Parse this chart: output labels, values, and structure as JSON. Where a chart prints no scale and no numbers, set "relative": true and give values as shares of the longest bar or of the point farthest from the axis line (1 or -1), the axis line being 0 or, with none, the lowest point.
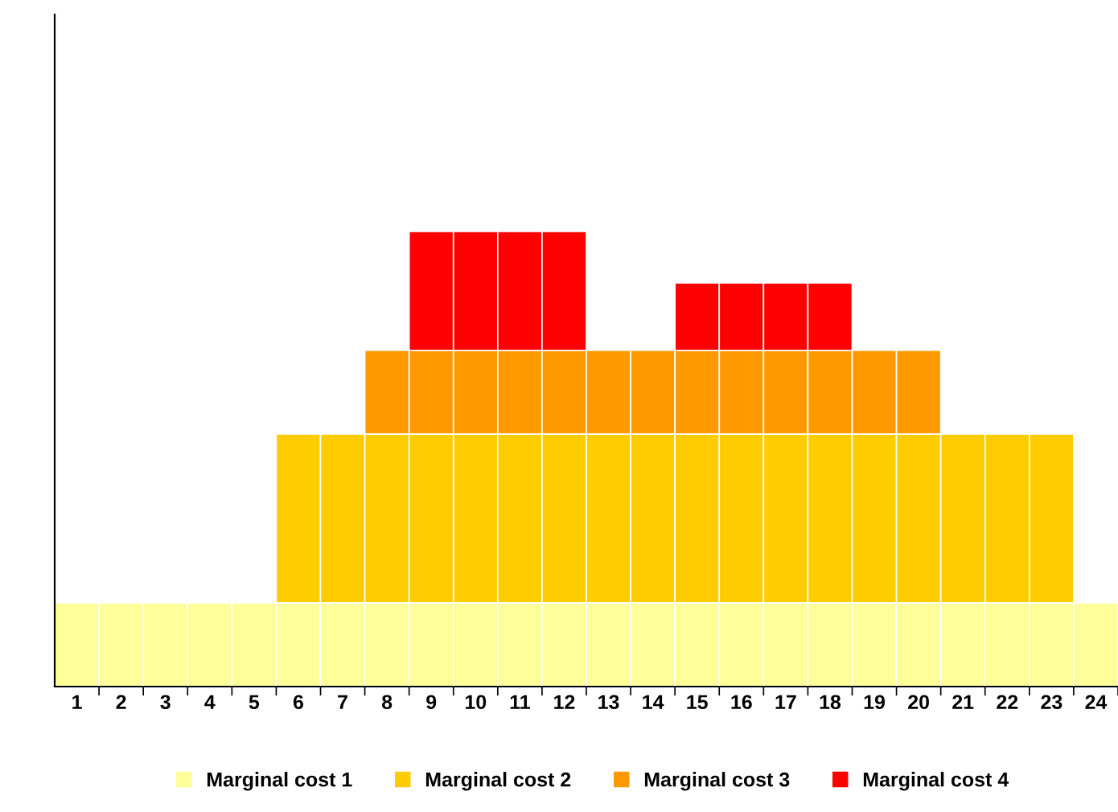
{
  "chart_data": {
    "type": "bar",
    "stacked": true,
    "relative": true,
    "legend": "bottom",
    "grid": false,
    "categories": [
      "1",
      "2",
      "3",
      "4",
      "5",
      "6",
      "7",
      "8",
      "9",
      "10",
      "11",
      "12",
      "13",
      "14",
      "15",
      "16",
      "17",
      "18",
      "19",
      "20",
      "21",
      "22",
      "23",
      "24"
    ],
    "series": [
      {
        "name": "Marginal cost 1",
        "color": "#ffff99",
        "values": [
          0.184,
          0.184,
          0.184,
          0.184,
          0.184,
          0.184,
          0.184,
          0.184,
          0.184,
          0.184,
          0.184,
          0.184,
          0.184,
          0.184,
          0.184,
          0.184,
          0.184,
          0.184,
          0.184,
          0.184,
          0.184,
          0.184,
          0.184,
          0.184
        ]
      },
      {
        "name": "Marginal cost 2",
        "color": "#ffcc00",
        "values": [
          0,
          0,
          0,
          0,
          0,
          0.371,
          0.371,
          0.371,
          0.371,
          0.371,
          0.371,
          0.371,
          0.371,
          0.371,
          0.371,
          0.371,
          0.371,
          0.371,
          0.371,
          0.371,
          0.371,
          0.371,
          0.371,
          0
        ]
      },
      {
        "name": "Marginal cost 3",
        "color": "#ff9900",
        "values": [
          0,
          0,
          0,
          0,
          0,
          0,
          0,
          0.184,
          0.184,
          0.184,
          0.184,
          0.184,
          0.184,
          0.184,
          0.184,
          0.184,
          0.184,
          0.184,
          0.184,
          0.184,
          0,
          0,
          0,
          0
        ]
      },
      {
        "name": "Marginal cost 4",
        "color": "#ff0000",
        "values": [
          0,
          0,
          0,
          0,
          0,
          0,
          0,
          0,
          0.261,
          0.261,
          0.261,
          0.261,
          0,
          0,
          0.148,
          0.148,
          0.148,
          0.148,
          0,
          0,
          0,
          0,
          0,
          0
        ]
      }
    ]
  }
}
